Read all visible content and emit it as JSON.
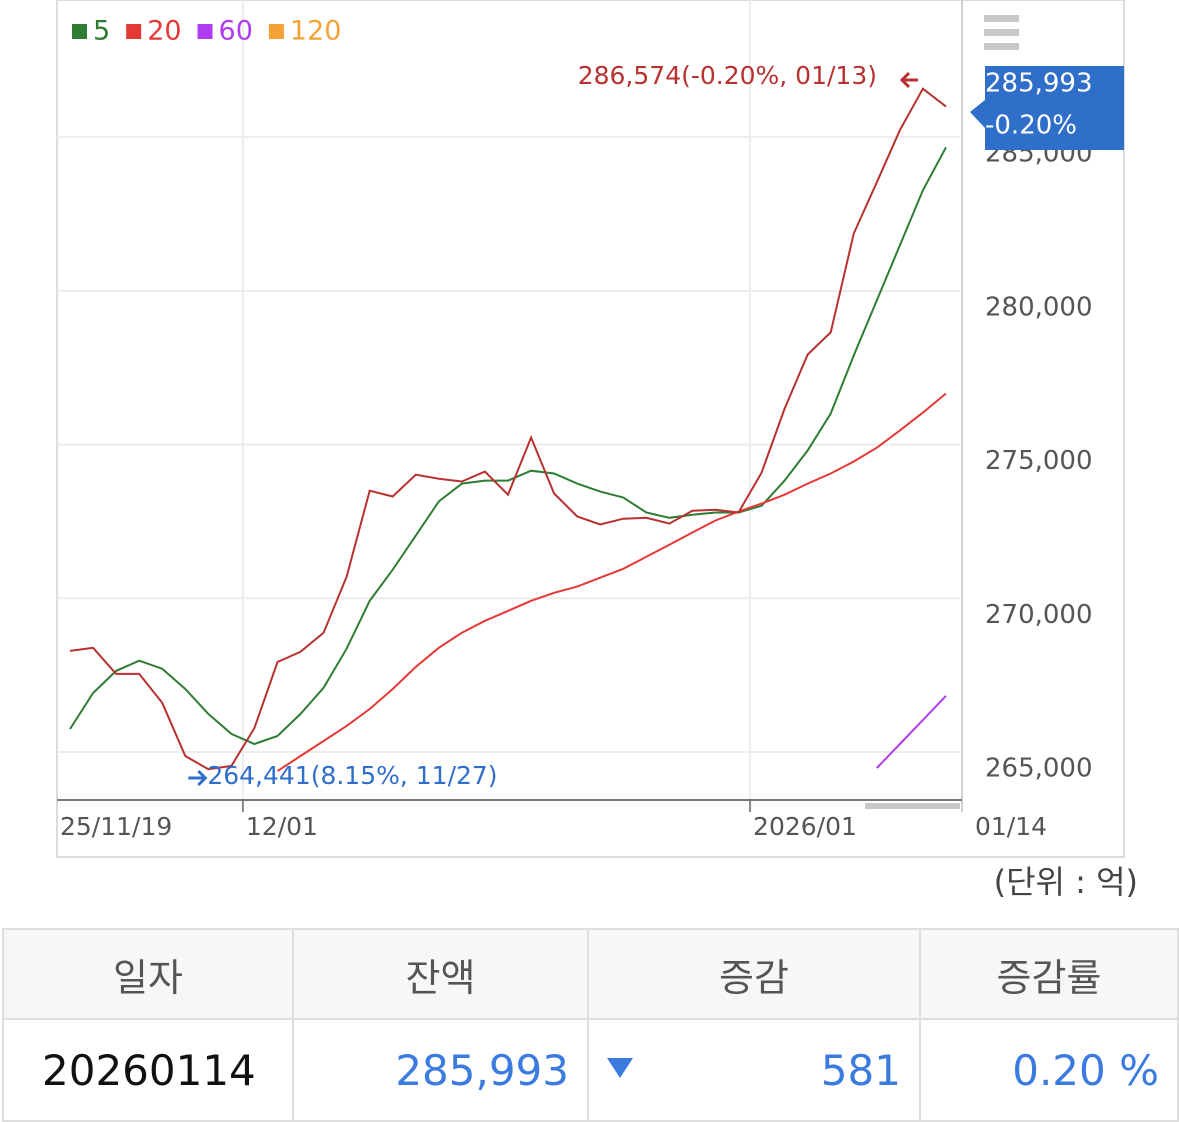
{
  "chart_data": {
    "type": "line",
    "categories": [
      "25/11/19",
      null,
      null,
      null,
      null,
      null,
      null,
      null,
      "12/01",
      null,
      null,
      null,
      null,
      null,
      null,
      null,
      null,
      null,
      null,
      null,
      null,
      null,
      null,
      null,
      null,
      null,
      null,
      null,
      null,
      null,
      "2026/01",
      null,
      null,
      null,
      null,
      null,
      null,
      null,
      "01/14"
    ],
    "color": "#b8312f",
    "values": [
      268290,
      268390,
      267540,
      267540,
      266600,
      264870,
      264441,
      264550,
      265780,
      267930,
      268260,
      268880,
      270700,
      273500,
      273310,
      274020,
      273890,
      273800,
      274120,
      273370,
      275230,
      273410,
      272660,
      272400,
      272590,
      272620,
      272430,
      272850,
      272880,
      272790,
      274090,
      276170,
      277930,
      278650,
      281870,
      283530,
      285230,
      286574,
      285993
    ],
    "series": [
      {
        "name": "5",
        "color": "#2e7d32",
        "values": [
          265750,
          266920,
          267640,
          267970,
          267710,
          267050,
          266240,
          265590,
          265260,
          265520,
          266240,
          267090,
          268360,
          269920,
          270930,
          272040,
          273150,
          273730,
          273830,
          273830,
          274150,
          274060,
          273730,
          273470,
          273280,
          272790,
          272620,
          272720,
          272790,
          272790,
          273010,
          273830,
          274810,
          276010,
          277900,
          279690,
          281480,
          283270,
          284670
        ]
      },
      {
        "name": "20",
        "color": "#e53935",
        "values": [
          null,
          null,
          null,
          null,
          null,
          null,
          null,
          null,
          null,
          264380,
          264870,
          265360,
          265850,
          266400,
          267050,
          267770,
          268390,
          268880,
          269270,
          269590,
          269920,
          270180,
          270380,
          270670,
          270960,
          271350,
          271740,
          272140,
          272530,
          272820,
          273080,
          273370,
          273730,
          274060,
          274450,
          274900,
          275460,
          276040,
          276660
        ]
      },
      {
        "name": "60",
        "color": "#b03cf0",
        "values": [
          null,
          null,
          null,
          null,
          null,
          null,
          null,
          null,
          null,
          null,
          null,
          null,
          null,
          null,
          null,
          null,
          null,
          null,
          null,
          null,
          null,
          null,
          null,
          null,
          null,
          null,
          null,
          null,
          null,
          null,
          null,
          null,
          null,
          null,
          null,
          264480,
          265260,
          266040,
          266830
        ]
      },
      {
        "name": "120",
        "color": "#f4a236",
        "values": [
          null,
          null,
          null,
          null,
          null,
          null,
          null,
          null,
          null,
          null,
          null,
          null,
          null,
          null,
          null,
          null,
          null,
          null,
          null,
          null,
          null,
          null,
          null,
          null,
          null,
          null,
          null,
          null,
          null,
          null,
          null,
          null,
          null,
          null,
          null,
          null,
          null,
          null,
          null
        ]
      }
    ],
    "ylim": [
      263440,
      289460
    ],
    "yticks": [
      {
        "value": 265000,
        "label": "265,000"
      },
      {
        "value": 270000,
        "label": "270,000"
      },
      {
        "value": 275000,
        "label": "275,000"
      },
      {
        "value": 280000,
        "label": "280,000"
      },
      {
        "value": 285000,
        "label": "285,000"
      }
    ],
    "grid": true,
    "max_annotation": "286,574(-0.20%, 01/13)",
    "min_annotation": "264,441(8.15%, 11/27)",
    "last_value_label": "285,993",
    "last_change_label": "-0.20%",
    "unit_note": "(단위 : 억)"
  },
  "table": {
    "columns": [
      "일자",
      "잔액",
      "증감",
      "증감률"
    ],
    "rows": [
      [
        "20260114",
        "285,993",
        "581",
        "0.20 %"
      ]
    ]
  }
}
